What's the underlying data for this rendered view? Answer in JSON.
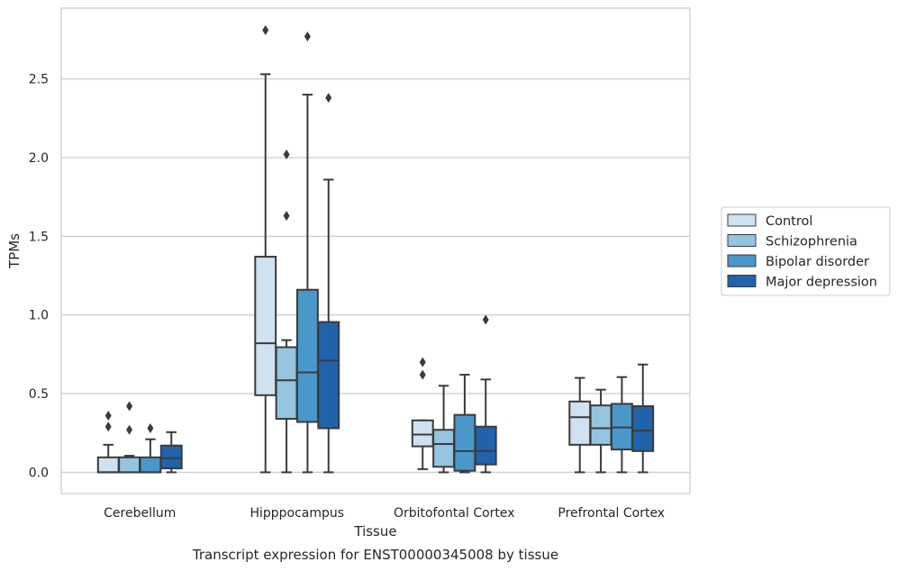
{
  "caption": "Transcript expression for ENST00000345008 by tissue",
  "chart_data": {
    "type": "box",
    "xlabel": "Tissue",
    "ylabel": "TPMs",
    "ylim": [
      -0.135,
      2.95
    ],
    "yticks": [
      0.0,
      0.5,
      1.0,
      1.5,
      2.0,
      2.5
    ],
    "ytick_labels": [
      "0.0",
      "0.5",
      "1.0",
      "1.5",
      "2.0",
      "2.5"
    ],
    "grid": "horizontal",
    "legend_position": "right",
    "categories": [
      "Cerebellum",
      "Hipppocampus",
      "Orbitofontal Cortex",
      "Prefrontal Cortex"
    ],
    "series": [
      {
        "name": "Control",
        "color": "#d0e1f2",
        "boxes": [
          {
            "whislo": 0.0,
            "q1": 0.0,
            "med": 0.0,
            "q3": 0.095,
            "whishi": 0.175,
            "fliers": [
              0.29,
              0.36
            ]
          },
          {
            "whislo": 0.0,
            "q1": 0.49,
            "med": 0.82,
            "q3": 1.37,
            "whishi": 2.53,
            "fliers": [
              2.81
            ]
          },
          {
            "whislo": 0.02,
            "q1": 0.165,
            "med": 0.24,
            "q3": 0.33,
            "whishi": 0.33,
            "fliers": [
              0.62,
              0.7
            ]
          },
          {
            "whislo": 0.0,
            "q1": 0.175,
            "med": 0.35,
            "q3": 0.45,
            "whishi": 0.6,
            "fliers": []
          }
        ]
      },
      {
        "name": "Schizophrenia",
        "color": "#94c4df",
        "boxes": [
          {
            "whislo": 0.0,
            "q1": 0.0,
            "med": 0.0,
            "q3": 0.095,
            "whishi": 0.105,
            "fliers": [
              0.27,
              0.42
            ]
          },
          {
            "whislo": 0.0,
            "q1": 0.34,
            "med": 0.585,
            "q3": 0.795,
            "whishi": 0.84,
            "fliers": [
              1.63,
              2.02
            ]
          },
          {
            "whislo": 0.0,
            "q1": 0.035,
            "med": 0.18,
            "q3": 0.27,
            "whishi": 0.55,
            "fliers": []
          },
          {
            "whislo": 0.0,
            "q1": 0.175,
            "med": 0.28,
            "q3": 0.425,
            "whishi": 0.525,
            "fliers": []
          }
        ]
      },
      {
        "name": "Bipolar disorder",
        "color": "#4a98c9",
        "boxes": [
          {
            "whislo": 0.0,
            "q1": 0.0,
            "med": 0.0,
            "q3": 0.095,
            "whishi": 0.21,
            "fliers": [
              0.28
            ]
          },
          {
            "whislo": 0.0,
            "q1": 0.32,
            "med": 0.635,
            "q3": 1.16,
            "whishi": 2.4,
            "fliers": [
              2.77
            ]
          },
          {
            "whislo": 0.0,
            "q1": 0.01,
            "med": 0.135,
            "q3": 0.365,
            "whishi": 0.62,
            "fliers": []
          },
          {
            "whislo": 0.0,
            "q1": 0.145,
            "med": 0.285,
            "q3": 0.435,
            "whishi": 0.605,
            "fliers": []
          }
        ]
      },
      {
        "name": "Major depression",
        "color": "#2063ab",
        "boxes": [
          {
            "whislo": 0.0,
            "q1": 0.025,
            "med": 0.09,
            "q3": 0.17,
            "whishi": 0.255,
            "fliers": []
          },
          {
            "whislo": 0.0,
            "q1": 0.28,
            "med": 0.71,
            "q3": 0.955,
            "whishi": 1.86,
            "fliers": [
              2.38
            ]
          },
          {
            "whislo": 0.0,
            "q1": 0.05,
            "med": 0.135,
            "q3": 0.29,
            "whishi": 0.59,
            "fliers": [
              0.97
            ]
          },
          {
            "whislo": 0.0,
            "q1": 0.135,
            "med": 0.265,
            "q3": 0.42,
            "whishi": 0.685,
            "fliers": []
          }
        ]
      }
    ]
  }
}
